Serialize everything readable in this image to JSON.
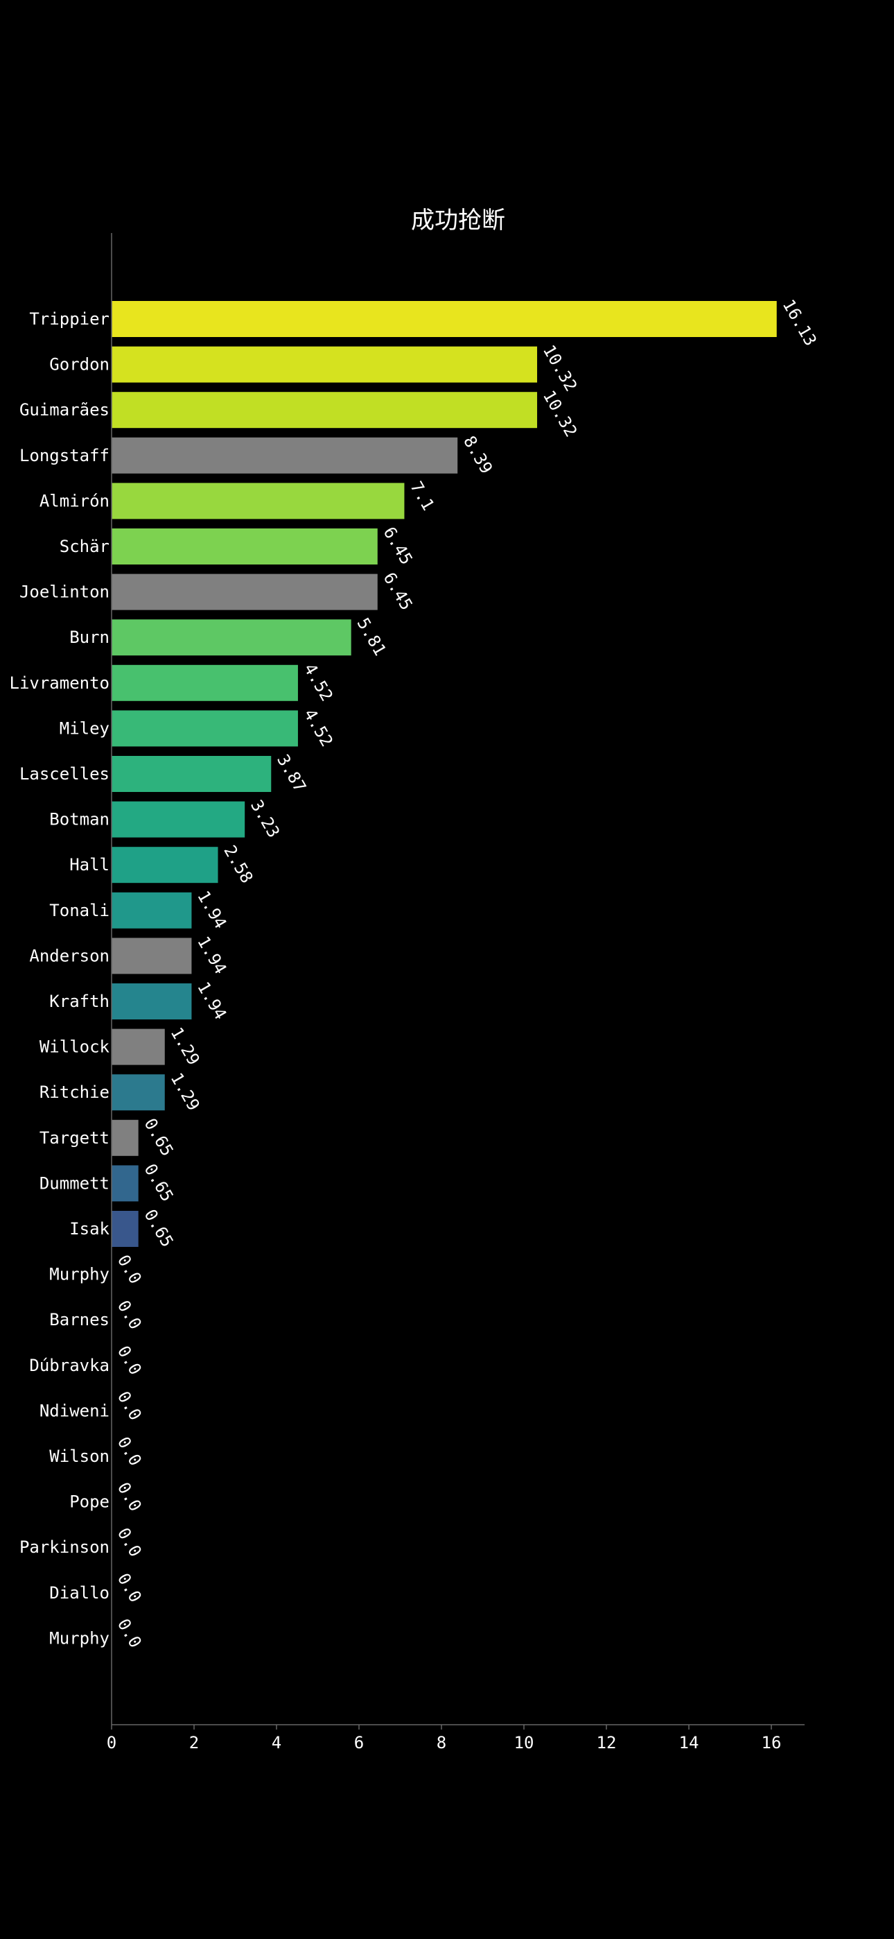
{
  "chart_data": {
    "type": "bar",
    "orientation": "horizontal",
    "title": "成功抢断",
    "xlabel": "",
    "ylabel": "",
    "xlim": [
      0,
      17
    ],
    "xticks": [
      0,
      2,
      4,
      6,
      8,
      10,
      12,
      14,
      16
    ],
    "grid": false,
    "categories": [
      "Trippier",
      "Gordon",
      "Guimarães",
      "Longstaff",
      "Almirón",
      "Schär",
      "Joelinton",
      "Burn",
      "Livramento",
      "Miley",
      "Lascelles",
      "Botman",
      "Hall",
      "Tonali",
      "Anderson",
      "Krafth",
      "Willock",
      "Ritchie",
      "Targett",
      "Dummett",
      "Isak",
      "Murphy",
      "Barnes",
      "Dúbravka",
      "Ndiweni",
      "Wilson",
      "Pope",
      "Parkinson",
      "Diallo",
      "Murphy"
    ],
    "values": [
      16.13,
      10.32,
      10.32,
      8.39,
      7.1,
      6.45,
      6.45,
      5.81,
      4.52,
      4.52,
      3.87,
      3.23,
      2.58,
      1.94,
      1.94,
      1.94,
      1.29,
      1.29,
      0.65,
      0.65,
      0.65,
      0.0,
      0.0,
      0.0,
      0.0,
      0.0,
      0.0,
      0.0,
      0.0,
      0.0
    ],
    "value_labels": [
      "16.13",
      "10.32",
      "10.32",
      "8.39",
      "7.1",
      "6.45",
      "6.45",
      "5.81",
      "4.52",
      "4.52",
      "3.87",
      "3.23",
      "2.58",
      "1.94",
      "1.94",
      "1.94",
      "1.29",
      "1.29",
      "0.65",
      "0.65",
      "0.65",
      "0.0",
      "0.0",
      "0.0",
      "0.0",
      "0.0",
      "0.0",
      "0.0",
      "0.0",
      "0.0"
    ],
    "colors": [
      "#e8e51e",
      "#d5e21f",
      "#c1df24",
      "#808080",
      "#98d83e",
      "#7dd250",
      "#808080",
      "#5ec864",
      "#48c16e",
      "#38b977",
      "#2db27d",
      "#23a983",
      "#1fa187",
      "#20988b",
      "#808080",
      "#25858e",
      "#808080",
      "#2c7a8e",
      "#808080",
      "#32678e",
      "#39578c",
      "#3b518b",
      "#3e4a89",
      "#414287",
      "#443a83",
      "#46327e",
      "#472a7a",
      "#482173",
      "#48186a",
      "#471063"
    ]
  }
}
